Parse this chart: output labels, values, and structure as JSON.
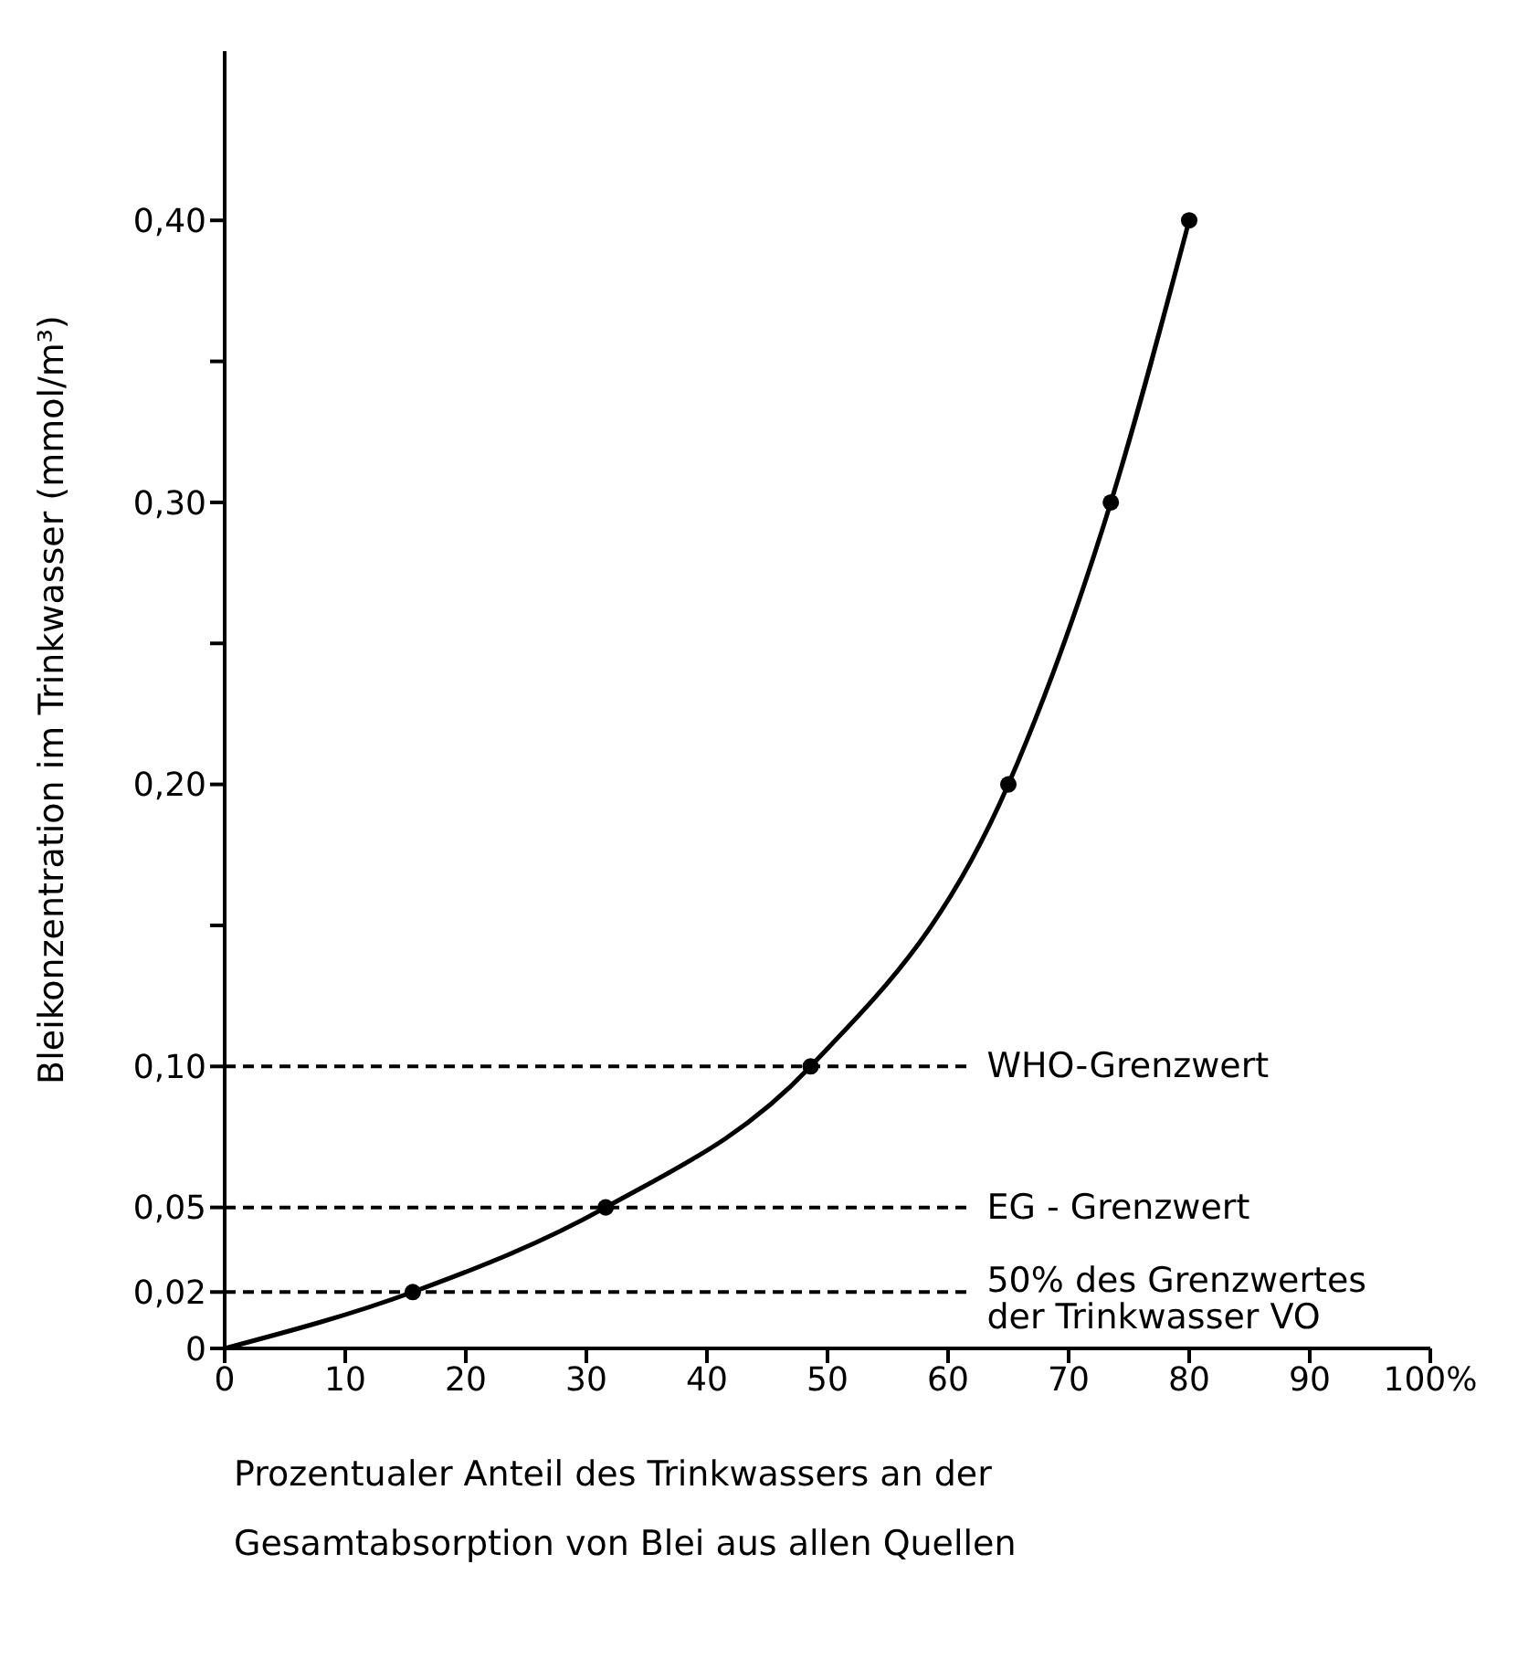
{
  "chart_data": {
    "type": "line",
    "xlabel": "Prozentualer Anteil des Trinkwassers an der\nGesamtabsorption von Blei aus allen Quellen",
    "ylabel": "Bleikonzentration im Trinkwasser (mmol/m³)",
    "series": [
      {
        "type": "line",
        "x": [
          0,
          15.6,
          31.6,
          48.6,
          65,
          73.5,
          80
        ],
        "values": [
          0,
          0.02,
          0.05,
          0.1,
          0.2,
          0.3,
          0.4
        ],
        "color": "#000000",
        "marker": "none"
      },
      {
        "type": "scatter",
        "x": [
          15.6,
          31.6,
          48.6,
          65,
          73.5,
          80
        ],
        "values": [
          0.02,
          0.05,
          0.1,
          0.2,
          0.3,
          0.4
        ],
        "color": "#000000",
        "marker": "circle"
      }
    ],
    "xlim": [
      0,
      100
    ],
    "xticks": [
      0,
      10,
      20,
      30,
      40,
      50,
      60,
      70,
      80,
      90,
      {
        "value": 100,
        "label": "100%"
      }
    ],
    "ylim": [
      0,
      0.46
    ],
    "yticks": [
      0,
      {
        "value": 0.02,
        "label": "0,02"
      },
      {
        "value": 0.05,
        "label": "0,05"
      },
      {
        "value": 0.1,
        "label": "0,10"
      },
      {
        "value": 0.15,
        "label": null
      },
      {
        "value": 0.2,
        "label": "0,20"
      },
      {
        "value": 0.25,
        "label": null
      },
      {
        "value": 0.3,
        "label": "0,30"
      },
      {
        "value": 0.35,
        "label": null
      },
      {
        "value": 0.4,
        "label": "0,40"
      }
    ],
    "ref_lines": [
      {
        "axis": "y",
        "value": 0.1,
        "label": "WHO-Grenzwert",
        "line_style": "dashed",
        "color": "#000000"
      },
      {
        "axis": "y",
        "value": 0.05,
        "label": "EG - Grenzwert",
        "line_style": "dashed",
        "color": "#000000"
      },
      {
        "axis": "y",
        "value": 0.02,
        "label": "50% des Grenzwertes\nder Trinkwasser VO",
        "line_style": "dashed",
        "color": "#000000"
      }
    ],
    "grid": false
  }
}
